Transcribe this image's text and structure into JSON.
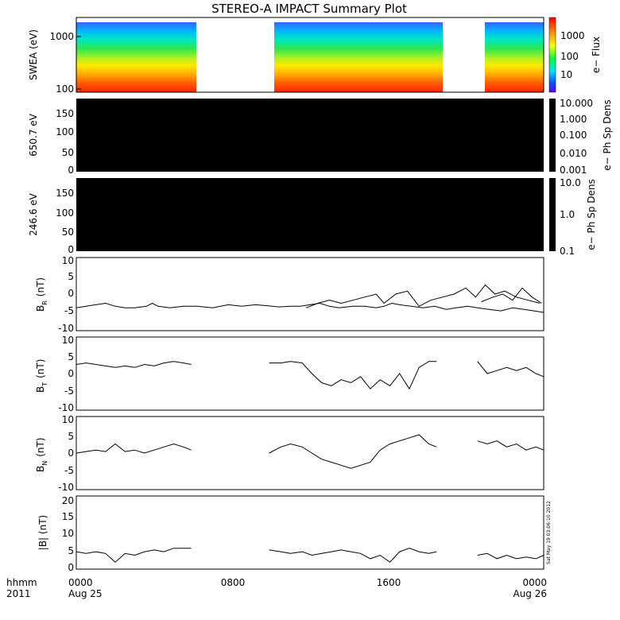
{
  "title": "STEREO-A IMPACT Summary Plot",
  "time_label": "hhmm",
  "year_label": "2011",
  "date_start": "Aug 25",
  "date_end": "Aug 26",
  "x_ticks": [
    "0000",
    "0800",
    "1600",
    "0000"
  ],
  "stamp": "Sat May 19 03:06:10 2012",
  "panels": {
    "swea": {
      "ylabel": "SWEA (eV)",
      "yticks": [
        "1000",
        "100"
      ],
      "cbar_label": "e− Flux",
      "cbar_ticks": [
        "1000",
        "100",
        "10"
      ]
    },
    "pad650": {
      "ylabel": "650.7 eV",
      "yticks": [
        "150",
        "100",
        "50",
        "0"
      ],
      "cbar_label": "e− Ph Sp Dens",
      "cbar_ticks": [
        "10.000",
        "1.000",
        "0.100",
        "0.010",
        "0.001"
      ]
    },
    "pad246": {
      "ylabel": "246.6 eV",
      "yticks": [
        "150",
        "100",
        "50",
        "0"
      ],
      "cbar_label": "e− Ph Sp Dens",
      "cbar_ticks": [
        "10.0",
        "1.0",
        "0.1"
      ]
    },
    "br": {
      "ylabel_main": "B",
      "ylabel_sub": "R",
      "ylabel_unit": "(nT)",
      "yticks": [
        "10",
        "5",
        "0",
        "-5",
        "-10"
      ]
    },
    "bt": {
      "ylabel_main": "B",
      "ylabel_sub": "T",
      "ylabel_unit": "(nT)",
      "yticks": [
        "10",
        "5",
        "0",
        "-5",
        "-10"
      ]
    },
    "bn": {
      "ylabel_main": "B",
      "ylabel_sub": "N",
      "ylabel_unit": "(nT)",
      "yticks": [
        "10",
        "5",
        "0",
        "-5",
        "-10"
      ]
    },
    "bmag": {
      "ylabel": "|B| (nT)",
      "yticks": [
        "20",
        "15",
        "10",
        "5",
        "0"
      ]
    }
  },
  "chart_data": [
    {
      "type": "heatmap",
      "name": "SWEA",
      "ylabel": "SWEA (eV)",
      "y_scale": "log",
      "ylim": [
        90,
        1900
      ],
      "data_intervals_hours": [
        [
          0,
          5.9
        ],
        [
          9.9,
          18.5
        ],
        [
          20.6,
          24
        ]
      ],
      "colorbar": {
        "label": "e− Flux",
        "scale": "log",
        "ticks": [
          1000,
          100,
          10
        ]
      }
    },
    {
      "type": "heatmap",
      "name": "650.7 eV",
      "ylim": [
        0,
        180
      ],
      "fill": "black",
      "colorbar": {
        "label": "e− Ph Sp Dens",
        "scale": "log",
        "ticks": [
          10,
          1,
          0.1,
          0.01,
          0.001
        ]
      }
    },
    {
      "type": "heatmap",
      "name": "246.6 eV",
      "ylim": [
        0,
        180
      ],
      "fill": "black",
      "colorbar": {
        "label": "e− Ph Sp Dens",
        "scale": "log",
        "ticks": [
          10,
          1,
          0.1
        ]
      }
    },
    {
      "type": "line",
      "ylabel": "BR (nT)",
      "ylim": [
        -12,
        12
      ],
      "x_unit": "hours",
      "segments": [
        {
          "x": [
            0,
            0.5,
            1,
            1.5,
            2,
            2.5,
            3,
            3.6,
            3.9,
            4.2,
            4.8,
            5.5,
            6.2,
            7,
            7.8,
            8.5,
            9.2,
            9.8,
            10.4,
            11,
            11.5,
            12,
            12.5,
            13,
            13.5,
            14.2,
            14.8,
            15.4,
            15.8,
            16.2,
            16.6,
            17.2,
            17.8,
            18.4,
            19,
            19.5,
            20.1,
            20.6,
            21.2,
            21.8,
            22.4,
            23,
            23.5,
            24
          ],
          "y": [
            -4.5,
            -4,
            -3.5,
            -3,
            -4,
            -4.5,
            -4.5,
            -4,
            -3,
            -4,
            -4.5,
            -4,
            -4,
            -4.5,
            -3.5,
            -4,
            -3.5,
            -3.8,
            -4.2,
            -4,
            -4,
            -3.5,
            -3,
            -4,
            -4.5,
            -4,
            -4,
            -4.5,
            -4,
            -3,
            -3.5,
            -4,
            -4.5,
            -4,
            -5,
            -4.5,
            -4,
            -4.5,
            -5,
            -5.5,
            -4.5,
            -5,
            -5.5,
            -6
          ]
        },
        {
          "x": [
            11.8,
            12.4,
            13,
            13.6,
            14.2,
            14.8,
            15.4,
            15.8,
            16.4,
            17,
            17.6,
            18.2,
            18.8,
            19.4,
            20,
            20.5,
            21,
            21.5,
            22,
            22.6,
            23.2,
            23.8
          ],
          "y": [
            -4.5,
            -3,
            -2,
            -3,
            -2,
            -1,
            0,
            -3,
            0,
            1,
            -4,
            -2,
            -1,
            0,
            2,
            -1,
            3,
            0,
            1,
            -1,
            -2,
            -3
          ]
        },
        {
          "x": [
            20.8,
            21.4,
            21.9,
            22.4,
            22.9,
            23.4,
            23.9
          ],
          "y": [
            -2.5,
            -1,
            0,
            -2,
            2,
            -1,
            -3
          ]
        }
      ]
    },
    {
      "type": "line",
      "ylabel": "BT (nT)",
      "ylim": [
        -12,
        12
      ],
      "x_unit": "hours",
      "segments": [
        {
          "x": [
            0,
            0.5,
            1,
            1.5,
            2,
            2.5,
            3,
            3.5,
            4,
            4.5,
            5,
            5.5,
            5.9
          ],
          "y": [
            3,
            3.5,
            3,
            2.5,
            2,
            2.5,
            2,
            3,
            2.5,
            3.5,
            4,
            3.5,
            3
          ]
        },
        {
          "x": [
            9.9,
            10.5,
            11,
            11.6,
            12.1,
            12.6,
            13.1,
            13.6,
            14.1,
            14.6,
            15.1,
            15.6,
            16.1,
            16.6,
            17.1,
            17.6,
            18.1,
            18.5
          ],
          "y": [
            3.5,
            3.5,
            4,
            3.5,
            0,
            -3,
            -4,
            -2,
            -3,
            -1,
            -5,
            -2,
            -4,
            0,
            -5,
            2,
            4,
            4
          ]
        },
        {
          "x": [
            20.6,
            21.1,
            21.6,
            22.1,
            22.6,
            23.1,
            23.6,
            24
          ],
          "y": [
            4,
            0,
            1,
            2,
            1,
            2,
            0,
            -1
          ]
        }
      ]
    },
    {
      "type": "line",
      "ylabel": "BN (nT)",
      "ylim": [
        -12,
        12
      ],
      "x_unit": "hours",
      "segments": [
        {
          "x": [
            0,
            0.5,
            1,
            1.5,
            2,
            2.5,
            3,
            3.5,
            4,
            4.5,
            5,
            5.5,
            5.9
          ],
          "y": [
            0,
            0.5,
            1,
            0.5,
            3,
            0.5,
            1,
            0,
            1,
            2,
            3,
            2,
            1
          ]
        },
        {
          "x": [
            9.9,
            10.5,
            11,
            11.6,
            12.1,
            12.6,
            13.1,
            13.6,
            14.1,
            14.6,
            15.1,
            15.6,
            16.1,
            16.6,
            17.1,
            17.6,
            18.1,
            18.5
          ],
          "y": [
            0,
            2,
            3,
            2,
            0,
            -2,
            -3,
            -4,
            -5,
            -4,
            -3,
            1,
            3,
            4,
            5,
            6,
            3,
            2
          ]
        },
        {
          "x": [
            20.6,
            21.1,
            21.6,
            22.1,
            22.6,
            23.1,
            23.6,
            24
          ],
          "y": [
            4,
            3,
            4,
            2,
            3,
            1,
            2,
            1
          ]
        }
      ]
    },
    {
      "type": "line",
      "ylabel": "|B| (nT)",
      "ylim": [
        0,
        21
      ],
      "x_unit": "hours",
      "segments": [
        {
          "x": [
            0,
            0.5,
            1,
            1.5,
            2,
            2.5,
            3,
            3.5,
            4,
            4.5,
            5,
            5.5,
            5.9
          ],
          "y": [
            5,
            4.5,
            5,
            4.5,
            2,
            4.5,
            4,
            5,
            5.5,
            5,
            6,
            6,
            6
          ]
        },
        {
          "x": [
            9.9,
            10.5,
            11,
            11.6,
            12.1,
            12.6,
            13.1,
            13.6,
            14.1,
            14.6,
            15.1,
            15.6,
            16.1,
            16.6,
            17.1,
            17.6,
            18.1,
            18.5
          ],
          "y": [
            5.5,
            5,
            4.5,
            5,
            4,
            4.5,
            5,
            5.5,
            5,
            4.5,
            3,
            4,
            2,
            5,
            6,
            5,
            4.5,
            5
          ]
        },
        {
          "x": [
            20.6,
            21.1,
            21.6,
            22.1,
            22.6,
            23.1,
            23.6,
            24
          ],
          "y": [
            4,
            4.5,
            3,
            4,
            3,
            3.5,
            3,
            4
          ]
        }
      ]
    }
  ]
}
